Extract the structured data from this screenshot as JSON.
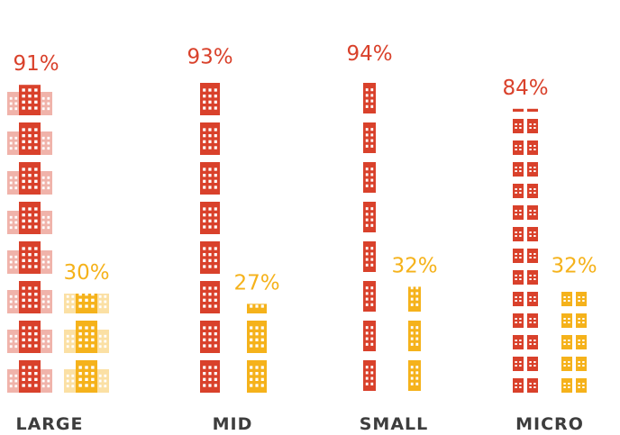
{
  "chart_data": {
    "type": "pictograph",
    "categories": [
      "LARGE",
      "MID",
      "SMALL",
      "MICRO"
    ],
    "series": [
      {
        "color": "#d9412b",
        "values": [
          91,
          93,
          94,
          84
        ],
        "value_labels": [
          "91%",
          "93%",
          "94%",
          "84%"
        ]
      },
      {
        "color": "#f5b21b",
        "values": [
          30,
          27,
          32,
          32
        ],
        "value_labels": [
          "30%",
          "27%",
          "32%",
          "32%"
        ]
      }
    ]
  }
}
